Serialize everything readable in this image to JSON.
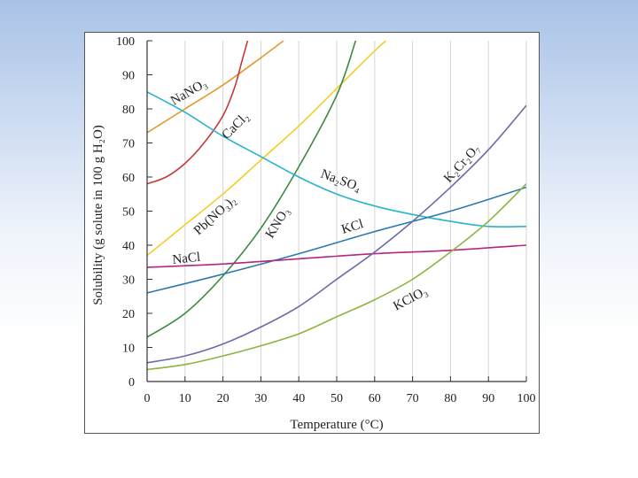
{
  "chart_data": {
    "type": "line",
    "title": "",
    "xlabel": "Temperature (°C)",
    "ylabel": "Solubility (g solute in 100 g H₂O)",
    "xlim": [
      0,
      100
    ],
    "ylim": [
      0,
      100
    ],
    "x_ticks": [
      "0",
      "10",
      "20",
      "30",
      "40",
      "50",
      "60",
      "70",
      "80",
      "90",
      "100"
    ],
    "y_ticks": [
      "0",
      "10",
      "20",
      "30",
      "40",
      "50",
      "60",
      "70",
      "80",
      "90",
      "100"
    ],
    "grid": "vertical only",
    "series": [
      {
        "name": "NaNO₃",
        "color": "#e39a2e",
        "points": [
          [
            0,
            73
          ],
          [
            10,
            80
          ],
          [
            20,
            87
          ],
          [
            30,
            95
          ],
          [
            36,
            100
          ]
        ]
      },
      {
        "name": "CaCl₂",
        "color": "#c8373c",
        "points": [
          [
            0,
            58
          ],
          [
            5,
            60
          ],
          [
            10,
            64
          ],
          [
            15,
            70
          ],
          [
            20,
            78
          ],
          [
            23,
            86
          ],
          [
            25,
            94
          ],
          [
            26.5,
            100
          ]
        ]
      },
      {
        "name": "Pb(NO₃)₂",
        "color": "#f4cd24",
        "points": [
          [
            0,
            37
          ],
          [
            10,
            46
          ],
          [
            20,
            55
          ],
          [
            30,
            65
          ],
          [
            40,
            75
          ],
          [
            50,
            86
          ],
          [
            60,
            97
          ],
          [
            63,
            100
          ]
        ]
      },
      {
        "name": "KNO₃",
        "color": "#3a8a3d",
        "points": [
          [
            0,
            13
          ],
          [
            10,
            20
          ],
          [
            20,
            31
          ],
          [
            30,
            45
          ],
          [
            40,
            63
          ],
          [
            50,
            84
          ],
          [
            55,
            100
          ]
        ]
      },
      {
        "name": "Na₂SO₄",
        "color": "#29b3cf",
        "points": [
          [
            0,
            85
          ],
          [
            10,
            79
          ],
          [
            20,
            72
          ],
          [
            30,
            66
          ],
          [
            40,
            60
          ],
          [
            50,
            55
          ],
          [
            60,
            51.5
          ],
          [
            70,
            49
          ],
          [
            80,
            47
          ],
          [
            90,
            45.5
          ],
          [
            100,
            45.5
          ]
        ]
      },
      {
        "name": "KCl",
        "color": "#2a7ab0",
        "points": [
          [
            0,
            26
          ],
          [
            20,
            31.5
          ],
          [
            40,
            37.5
          ],
          [
            60,
            44
          ],
          [
            80,
            50
          ],
          [
            100,
            57
          ]
        ]
      },
      {
        "name": "NaCl",
        "color": "#b4267f",
        "points": [
          [
            0,
            33.5
          ],
          [
            20,
            34.5
          ],
          [
            40,
            36
          ],
          [
            60,
            37.5
          ],
          [
            80,
            38.5
          ],
          [
            100,
            40
          ]
        ]
      },
      {
        "name": "K₂Cr₂O₇",
        "color": "#6b6aa6",
        "points": [
          [
            0,
            5.5
          ],
          [
            10,
            7.5
          ],
          [
            20,
            11
          ],
          [
            30,
            16
          ],
          [
            40,
            22
          ],
          [
            50,
            30
          ],
          [
            60,
            38
          ],
          [
            70,
            47
          ],
          [
            80,
            57
          ],
          [
            90,
            68
          ],
          [
            100,
            81
          ]
        ]
      },
      {
        "name": "KClO₃",
        "color": "#8cb540",
        "points": [
          [
            0,
            3.5
          ],
          [
            10,
            5
          ],
          [
            20,
            7.5
          ],
          [
            30,
            10.5
          ],
          [
            40,
            14
          ],
          [
            50,
            19
          ],
          [
            60,
            24
          ],
          [
            70,
            30
          ],
          [
            80,
            38
          ],
          [
            90,
            47
          ],
          [
            100,
            58
          ]
        ]
      }
    ]
  }
}
